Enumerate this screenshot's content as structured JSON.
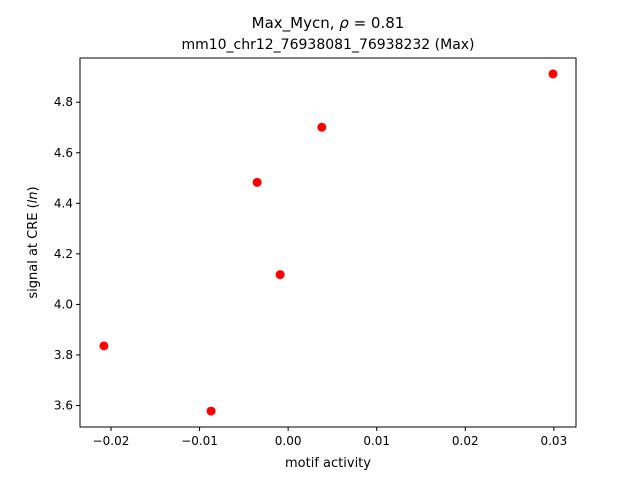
{
  "chart_data": {
    "type": "scatter",
    "title_line1": "Max_Mycn, ",
    "title_rho_symbol": "ρ",
    "title_rho_value": " = 0.81",
    "title_line2": "mm10_chr12_76938081_76938232 (Max)",
    "xlabel": "motif activity",
    "ylabel_prefix": "signal at CRE (",
    "ylabel_italic": "ln",
    "ylabel_suffix": ")",
    "xlim": [
      -0.0235,
      0.0325
    ],
    "ylim": [
      3.515,
      4.975
    ],
    "xticks": [
      {
        "value": -0.02,
        "label": "−0.02"
      },
      {
        "value": -0.01,
        "label": "−0.01"
      },
      {
        "value": 0.0,
        "label": "0.00"
      },
      {
        "value": 0.01,
        "label": "0.01"
      },
      {
        "value": 0.02,
        "label": "0.02"
      },
      {
        "value": 0.03,
        "label": "0.03"
      }
    ],
    "yticks": [
      {
        "value": 3.6,
        "label": "3.6"
      },
      {
        "value": 3.8,
        "label": "3.8"
      },
      {
        "value": 4.0,
        "label": "4.0"
      },
      {
        "value": 4.2,
        "label": "4.2"
      },
      {
        "value": 4.4,
        "label": "4.4"
      },
      {
        "value": 4.6,
        "label": "4.6"
      },
      {
        "value": 4.8,
        "label": "4.8"
      }
    ],
    "points": [
      {
        "x": -0.0208,
        "y": 3.836
      },
      {
        "x": -0.0087,
        "y": 3.578
      },
      {
        "x": -0.0035,
        "y": 4.483
      },
      {
        "x": -0.0009,
        "y": 4.118
      },
      {
        "x": 0.0038,
        "y": 4.701
      },
      {
        "x": 0.0299,
        "y": 4.912
      }
    ],
    "marker_color": "#ff0000",
    "grid": false
  }
}
